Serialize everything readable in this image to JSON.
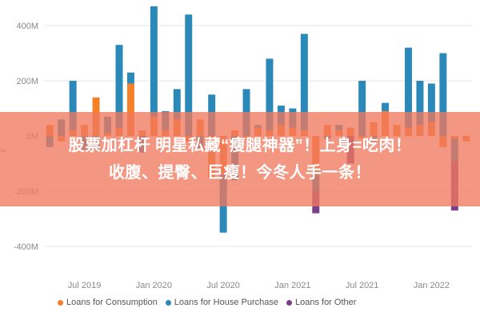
{
  "overlay": {
    "line1": "股票加杠杆 明星私藏“瘦腿神器”！上身=吃肉！",
    "line2": "收腹、提臀、巨瘦！今冬人手一条！"
  },
  "axis_unit": "€",
  "colors": {
    "consumption": "#f4812a",
    "house": "#2a89b8",
    "other": "#7b3f8a",
    "grid": "#e6e6e6"
  },
  "chart_data": {
    "type": "bar",
    "stacked": true,
    "ylim": [
      -450,
      450
    ],
    "yticks": [
      "400M",
      "200M",
      "0M",
      "-200M",
      "-400M"
    ],
    "ytick_values": [
      400,
      200,
      0,
      -200,
      -400
    ],
    "xticks": [
      "Jul 2019",
      "Jan 2020",
      "Jul 2020",
      "Jan 2021",
      "Jul 2021",
      "Jan 2022"
    ],
    "xtick_index": [
      3,
      9,
      15,
      21,
      27,
      33
    ],
    "legend_position": "bottom",
    "series": [
      {
        "name": "Loans for Consumption",
        "color_key": "consumption",
        "values": [
          40,
          -20,
          20,
          40,
          140,
          10,
          30,
          190,
          20,
          70,
          20,
          60,
          -20,
          60,
          -150,
          -140,
          20,
          -10,
          30,
          20,
          40,
          30,
          20,
          -140,
          40,
          20,
          30,
          -10,
          50,
          90,
          40,
          30,
          40,
          50,
          -40,
          -10,
          -20
        ]
      },
      {
        "name": "Loans for House Purchase",
        "color_key": "house",
        "values": [
          -40,
          60,
          180,
          -50,
          -50,
          60,
          300,
          40,
          -60,
          400,
          70,
          110,
          440,
          -50,
          150,
          -210,
          -160,
          170,
          10,
          260,
          70,
          70,
          350,
          -60,
          -10,
          20,
          0,
          200,
          -20,
          30,
          0,
          290,
          160,
          140,
          300,
          -80,
          0
        ]
      },
      {
        "name": "Loans for Other",
        "color_key": "other",
        "values": [
          0,
          0,
          0,
          0,
          0,
          0,
          0,
          0,
          0,
          0,
          0,
          0,
          0,
          0,
          0,
          0,
          0,
          0,
          0,
          0,
          0,
          0,
          0,
          -80,
          0,
          0,
          -100,
          0,
          0,
          0,
          0,
          0,
          0,
          0,
          0,
          -180,
          0
        ]
      }
    ]
  }
}
